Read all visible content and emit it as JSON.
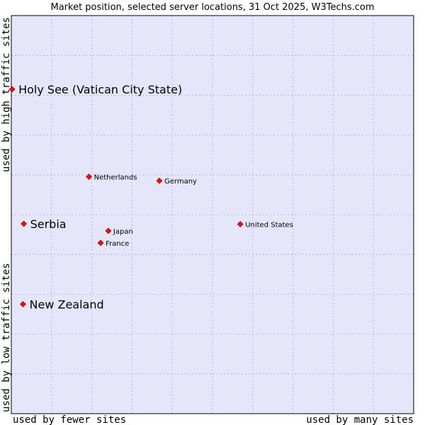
{
  "chart_data": {
    "type": "scatter",
    "title": "Market position, selected server locations, 31 Oct 2025, W3Techs.com",
    "xlabel_left": "used by fewer sites",
    "xlabel_right": "used by many sites",
    "ylabel_top": "used by high traffic sites",
    "ylabel_bottom": "used by low traffic sites",
    "xlim": [
      0,
      100
    ],
    "ylim": [
      0,
      100
    ],
    "grid": true,
    "colors": {
      "plot_background": "#e6e6fa",
      "grid_line": "#aaaacc",
      "axis_line": "#000000",
      "marker": "#ff0000",
      "marker_outline": "#880000"
    },
    "points": [
      {
        "label": "Holy See (Vatican City State)",
        "x": 0.2,
        "y": 81.5,
        "emphasis": "large"
      },
      {
        "label": "Netherlands",
        "x": 19.3,
        "y": 59.5,
        "emphasis": "small"
      },
      {
        "label": "Germany",
        "x": 36.8,
        "y": 58.5,
        "emphasis": "small"
      },
      {
        "label": "Serbia",
        "x": 3.1,
        "y": 47.7,
        "emphasis": "large"
      },
      {
        "label": "United States",
        "x": 56.9,
        "y": 47.6,
        "emphasis": "small"
      },
      {
        "label": "Japan",
        "x": 24.1,
        "y": 45.9,
        "emphasis": "small"
      },
      {
        "label": "France",
        "x": 22.2,
        "y": 42.9,
        "emphasis": "small"
      },
      {
        "label": "New Zealand",
        "x": 2.9,
        "y": 27.5,
        "emphasis": "large"
      }
    ]
  }
}
